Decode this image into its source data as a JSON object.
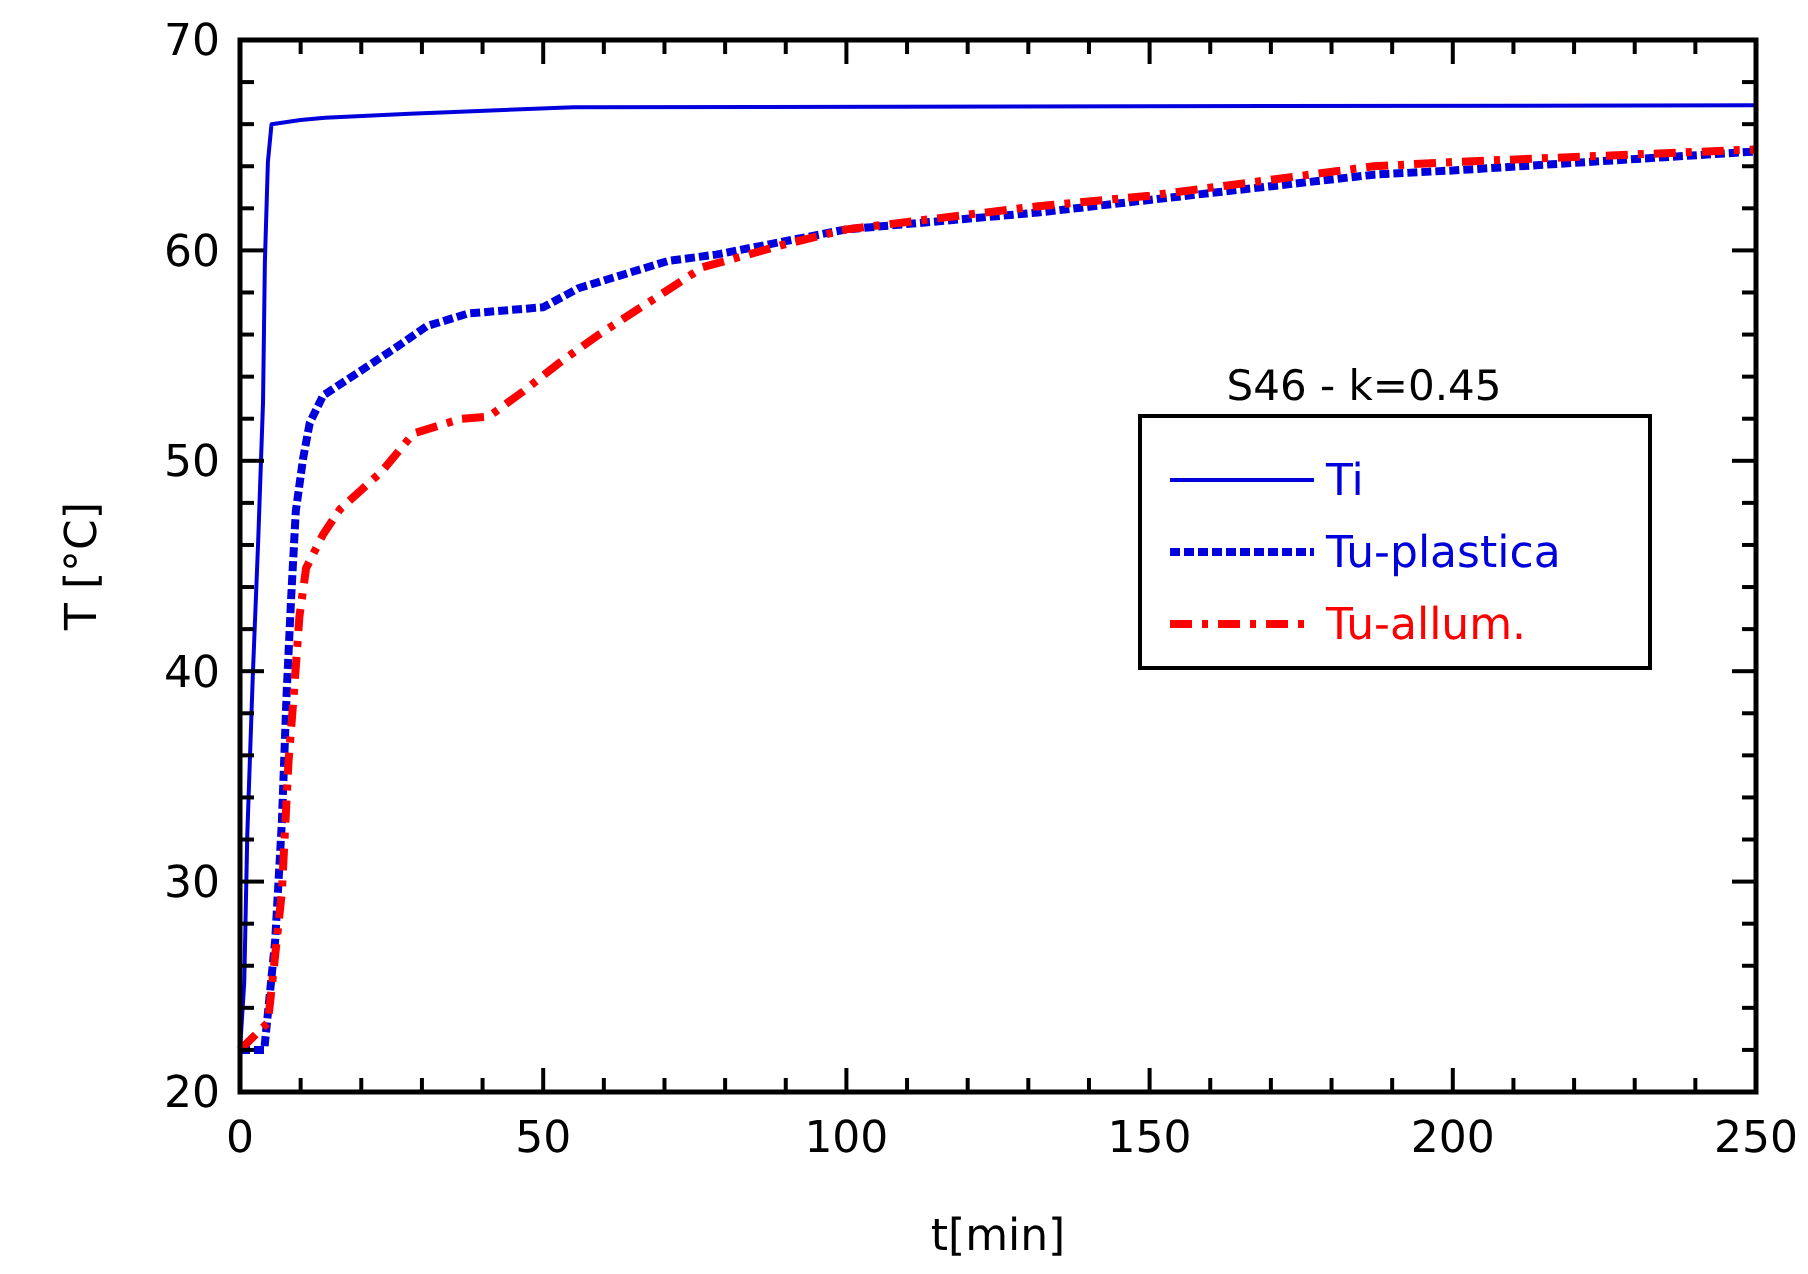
{
  "chart_data": {
    "type": "line",
    "xlabel": "t[min]",
    "ylabel": "T [°C]",
    "annotations": [
      "S46  -  k=0.45"
    ],
    "xlim": [
      0,
      250
    ],
    "ylim": [
      20,
      70
    ],
    "xticks": [
      0,
      {
        "value": 10,
        "label": null
      },
      {
        "value": 20,
        "label": null
      },
      {
        "value": 30,
        "label": null
      },
      {
        "value": 40,
        "label": null
      },
      50,
      {
        "value": 60,
        "label": null
      },
      {
        "value": 70,
        "label": null
      },
      {
        "value": 80,
        "label": null
      },
      {
        "value": 90,
        "label": null
      },
      100,
      {
        "value": 110,
        "label": null
      },
      {
        "value": 120,
        "label": null
      },
      {
        "value": 130,
        "label": null
      },
      {
        "value": 140,
        "label": null
      },
      150,
      {
        "value": 160,
        "label": null
      },
      {
        "value": 170,
        "label": null
      },
      {
        "value": 180,
        "label": null
      },
      {
        "value": 190,
        "label": null
      },
      200,
      {
        "value": 210,
        "label": null
      },
      {
        "value": 220,
        "label": null
      },
      {
        "value": 230,
        "label": null
      },
      {
        "value": 240,
        "label": null
      },
      250
    ],
    "yticks": [
      20,
      {
        "value": 22,
        "label": null
      },
      {
        "value": 24,
        "label": null
      },
      {
        "value": 26,
        "label": null
      },
      {
        "value": 28,
        "label": null
      },
      30,
      {
        "value": 32,
        "label": null
      },
      {
        "value": 34,
        "label": null
      },
      {
        "value": 36,
        "label": null
      },
      {
        "value": 38,
        "label": null
      },
      40,
      {
        "value": 42,
        "label": null
      },
      {
        "value": 44,
        "label": null
      },
      {
        "value": 46,
        "label": null
      },
      {
        "value": 48,
        "label": null
      },
      50,
      {
        "value": 52,
        "label": null
      },
      {
        "value": 54,
        "label": null
      },
      {
        "value": 56,
        "label": null
      },
      {
        "value": 58,
        "label": null
      },
      60,
      {
        "value": 62,
        "label": null
      },
      {
        "value": 64,
        "label": null
      },
      {
        "value": 66,
        "label": null
      },
      {
        "value": 68,
        "label": null
      },
      70
    ],
    "grid": false,
    "legend": "right",
    "marker": "none",
    "series": [
      {
        "name": "Ti",
        "color": "#0000dd",
        "line_style": "solid",
        "x": [
          0,
          0.7,
          1.2,
          2.1,
          3,
          3.8,
          4.1,
          4.6,
          5.2,
          10,
          14,
          28,
          55,
          250
        ],
        "values": [
          22,
          25.2,
          32.2,
          39.7,
          46.2,
          52.8,
          59.4,
          64.2,
          66,
          66.2,
          66.3,
          66.5,
          66.8,
          66.9
        ]
      },
      {
        "name": "Tu-plastica",
        "color": "#0000dd",
        "line_style": "dotted",
        "x": [
          0,
          4,
          5.8,
          6.9,
          7.7,
          8.4,
          9.2,
          10.4,
          11.5,
          13.7,
          19.5,
          26.3,
          30.8,
          37.6,
          50,
          55.8,
          70.6,
          78.5,
          100,
          131.6,
          150,
          187,
          200,
          250
        ],
        "values": [
          22,
          22,
          27.2,
          32.8,
          39,
          43.3,
          47.6,
          50.1,
          51.8,
          53.1,
          54.2,
          55.5,
          56.4,
          57,
          57.3,
          58.2,
          59.5,
          59.8,
          61,
          61.8,
          62.4,
          63.6,
          63.8,
          64.7
        ]
      },
      {
        "name": "Tu-allum.",
        "color": "#ff0000",
        "line_style": "dashed",
        "x": [
          0,
          4.6,
          5.8,
          6.9,
          8,
          8.9,
          9.8,
          10.9,
          13.7,
          16.5,
          23.4,
          28.6,
          36.5,
          41,
          46.7,
          52.4,
          59.2,
          68.3,
          76.3,
          90,
          100,
          131.6,
          150,
          187,
          200,
          250
        ],
        "values": [
          22,
          23.3,
          26.5,
          29.5,
          35.7,
          39,
          42.6,
          44.9,
          46.5,
          47.7,
          49.5,
          51.3,
          52,
          52.1,
          53.3,
          54.6,
          56,
          57.7,
          59.2,
          60.3,
          61,
          62.1,
          62.6,
          64,
          64.2,
          64.8
        ]
      }
    ]
  }
}
